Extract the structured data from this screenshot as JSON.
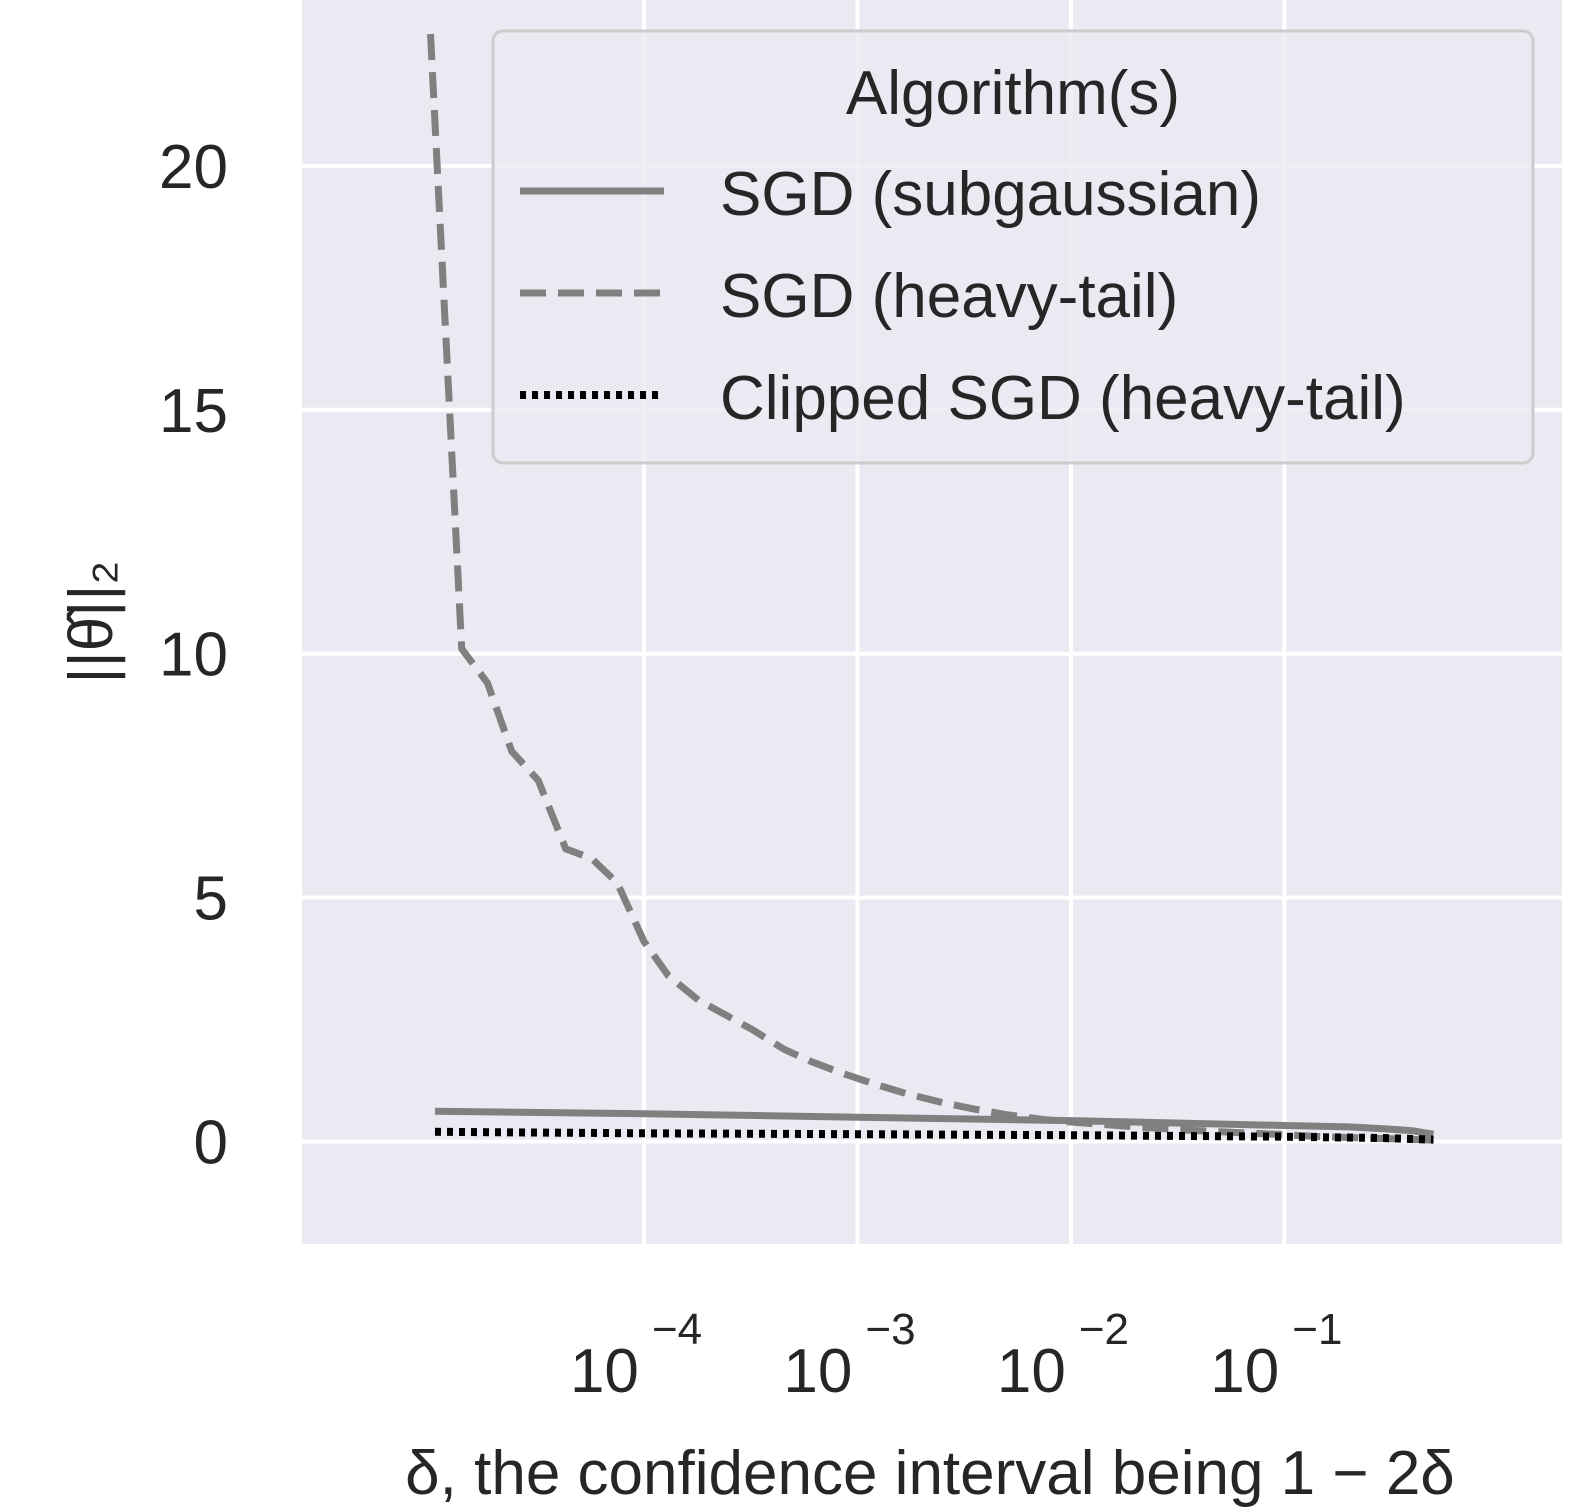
{
  "chart_data": {
    "type": "line",
    "title": "",
    "xlabel": "δ, the confidence interval being 1 − 2δ",
    "ylabel": "||θ̂||₂",
    "xscale": "log",
    "xlim": [
      2.5e-06,
      2.0
    ],
    "ylim": [
      -2.1,
      23.4
    ],
    "grid": true,
    "background_color": "#eaeaf2",
    "x_ticks": [
      {
        "base": "10",
        "exp": "−4",
        "value": 0.0001
      },
      {
        "base": "10",
        "exp": "−3",
        "value": 0.001
      },
      {
        "base": "10",
        "exp": "−2",
        "value": 0.01
      },
      {
        "base": "10",
        "exp": "−1",
        "value": 0.1
      }
    ],
    "y_ticks": [
      {
        "label": "0",
        "value": 0
      },
      {
        "label": "5",
        "value": 5
      },
      {
        "label": "10",
        "value": 10
      },
      {
        "label": "15",
        "value": 15
      },
      {
        "label": "20",
        "value": 20
      }
    ],
    "legend": {
      "title": "Algorithm(s)",
      "placement": "top-right"
    },
    "series": [
      {
        "name": "SGD (subgaussian)",
        "style": "solid",
        "color": "#808080",
        "x": [
          1.05e-05,
          0.0001,
          0.001,
          0.01,
          0.1,
          0.2,
          0.3,
          0.4,
          0.5
        ],
        "y": [
          0.62,
          0.57,
          0.5,
          0.43,
          0.33,
          0.3,
          0.26,
          0.22,
          0.15
        ]
      },
      {
        "name": "SGD (heavy-tail)",
        "style": "dashed",
        "color": "#808080",
        "x": [
          1e-05,
          1.4e-05,
          1.85e-05,
          2.4e-05,
          3.2e-05,
          4.3e-05,
          5.7e-05,
          7.5e-05,
          0.0001,
          0.00013,
          0.00018,
          0.00024,
          0.00032,
          0.00045,
          0.0006,
          0.00085,
          0.0012,
          0.0017,
          0.0025,
          0.0035,
          0.005,
          0.0075,
          0.01,
          0.02,
          0.04,
          0.08,
          0.15,
          0.3,
          0.5
        ],
        "y": [
          22.7,
          10.1,
          9.4,
          8.0,
          7.4,
          6.0,
          5.8,
          5.3,
          4.1,
          3.4,
          2.9,
          2.6,
          2.3,
          1.9,
          1.65,
          1.4,
          1.18,
          0.98,
          0.8,
          0.67,
          0.55,
          0.45,
          0.4,
          0.3,
          0.22,
          0.16,
          0.1,
          0.06,
          0.03
        ]
      },
      {
        "name": "Clipped SGD (heavy-tail)",
        "style": "dotted",
        "color": "#000000",
        "x": [
          1.05e-05,
          0.0001,
          0.001,
          0.01,
          0.1,
          0.3,
          0.5
        ],
        "y": [
          0.2,
          0.17,
          0.15,
          0.13,
          0.1,
          0.07,
          0.04
        ]
      }
    ]
  }
}
